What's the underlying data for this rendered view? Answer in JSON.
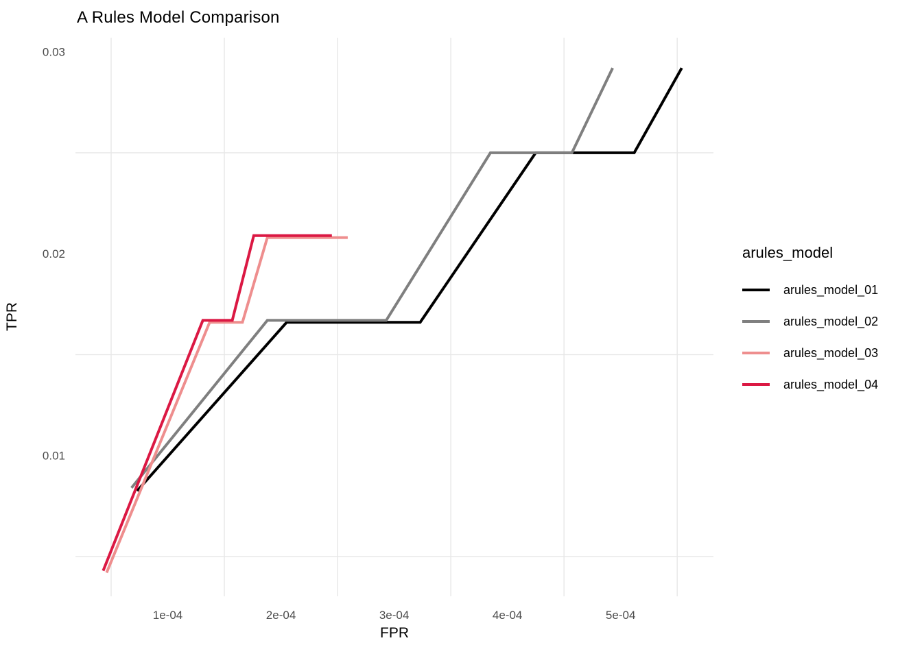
{
  "title": "A Rules Model Comparison",
  "chart_data": {
    "type": "line",
    "title": "A Rules Model Comparison",
    "xlabel": "FPR",
    "ylabel": "TPR",
    "xlim": [
      1.85e-05,
      0.000582
    ],
    "ylim": [
      0.00303,
      0.0307
    ],
    "x_ticks": [
      {
        "value": 0.0001,
        "label": "1e-04"
      },
      {
        "value": 0.0002,
        "label": "2e-04"
      },
      {
        "value": 0.0003,
        "label": "3e-04"
      },
      {
        "value": 0.0004,
        "label": "4e-04"
      },
      {
        "value": 0.0005,
        "label": "5e-04"
      }
    ],
    "y_ticks": [
      {
        "value": 0.01,
        "label": "0.01"
      },
      {
        "value": 0.02,
        "label": "0.02"
      },
      {
        "value": 0.03,
        "label": "0.03"
      }
    ],
    "grid": {
      "color": "#E7E7E7",
      "minor_x": [
        5e-05,
        0.00015,
        0.00025,
        0.00035,
        0.00045,
        0.00055
      ],
      "minor_y": [
        0.005,
        0.015,
        0.025
      ],
      "major_visible": false
    },
    "legend": {
      "title": "arules_model",
      "position": "right"
    },
    "series": [
      {
        "name": "arules_model_01",
        "color": "#000000",
        "points": [
          [
            7.3e-05,
            0.00825
          ],
          [
            0.000205,
            0.0166
          ],
          [
            0.000323,
            0.0166
          ],
          [
            0.000425,
            0.025
          ],
          [
            0.000512,
            0.025
          ],
          [
            0.000554,
            0.0292
          ]
        ]
      },
      {
        "name": "arules_model_02",
        "color": "#7F7F7F",
        "points": [
          [
            6.8e-05,
            0.0084
          ],
          [
            0.000188,
            0.0167
          ],
          [
            0.000293,
            0.0167
          ],
          [
            0.000385,
            0.025
          ],
          [
            0.000457,
            0.025
          ],
          [
            0.000493,
            0.0292
          ]
        ]
      },
      {
        "name": "arules_model_03",
        "color": "#EE8E8E",
        "points": [
          [
            4.6e-05,
            0.0042
          ],
          [
            0.000137,
            0.0166
          ],
          [
            0.000166,
            0.0166
          ],
          [
            0.000188,
            0.0208
          ],
          [
            0.000259,
            0.0208
          ]
        ]
      },
      {
        "name": "arules_model_04",
        "color": "#DB1843",
        "points": [
          [
            4.3e-05,
            0.0043
          ],
          [
            0.000131,
            0.0167
          ],
          [
            0.000157,
            0.0167
          ],
          [
            0.000176,
            0.0209
          ],
          [
            0.000245,
            0.0209
          ]
        ]
      }
    ],
    "style": {
      "line_width": 4,
      "tick_label_color": "#4D4D4D",
      "tick_label_size": 17
    }
  }
}
